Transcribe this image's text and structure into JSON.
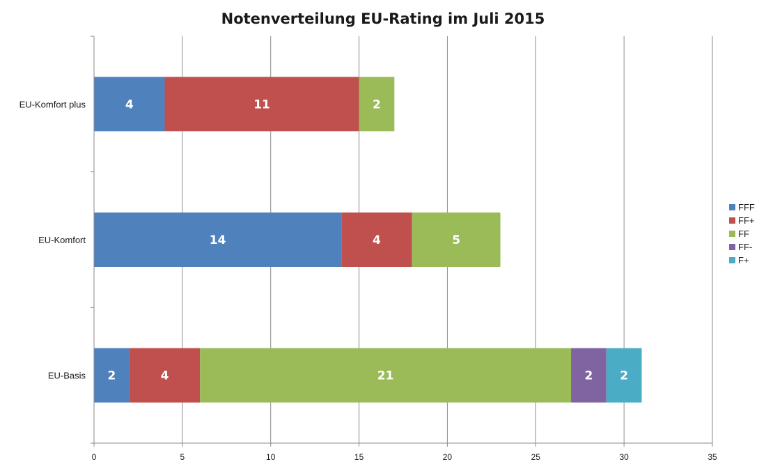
{
  "chart_data": {
    "type": "bar",
    "orientation": "horizontal",
    "stacked": true,
    "title": "Notenverteilung EU-Rating im Juli 2015",
    "xlabel": "",
    "ylabel": "",
    "xlim": [
      0,
      35
    ],
    "x_ticks": [
      0,
      5,
      10,
      15,
      20,
      25,
      30,
      35
    ],
    "grid": "vertical",
    "legend": "right",
    "categories": [
      "EU-Basis",
      "EU-Komfort",
      "EU-Komfort plus"
    ],
    "series": [
      {
        "name": "FFF",
        "color": "#4f81bd",
        "values": [
          2,
          14,
          4
        ]
      },
      {
        "name": "FF+",
        "color": "#c0504d",
        "values": [
          4,
          4,
          11
        ]
      },
      {
        "name": "FF",
        "color": "#9bbb59",
        "values": [
          21,
          5,
          2
        ]
      },
      {
        "name": "FF-",
        "color": "#8064a2",
        "values": [
          2,
          0,
          0
        ]
      },
      {
        "name": "F+",
        "color": "#4bacc6",
        "values": [
          2,
          0,
          0
        ]
      }
    ]
  }
}
